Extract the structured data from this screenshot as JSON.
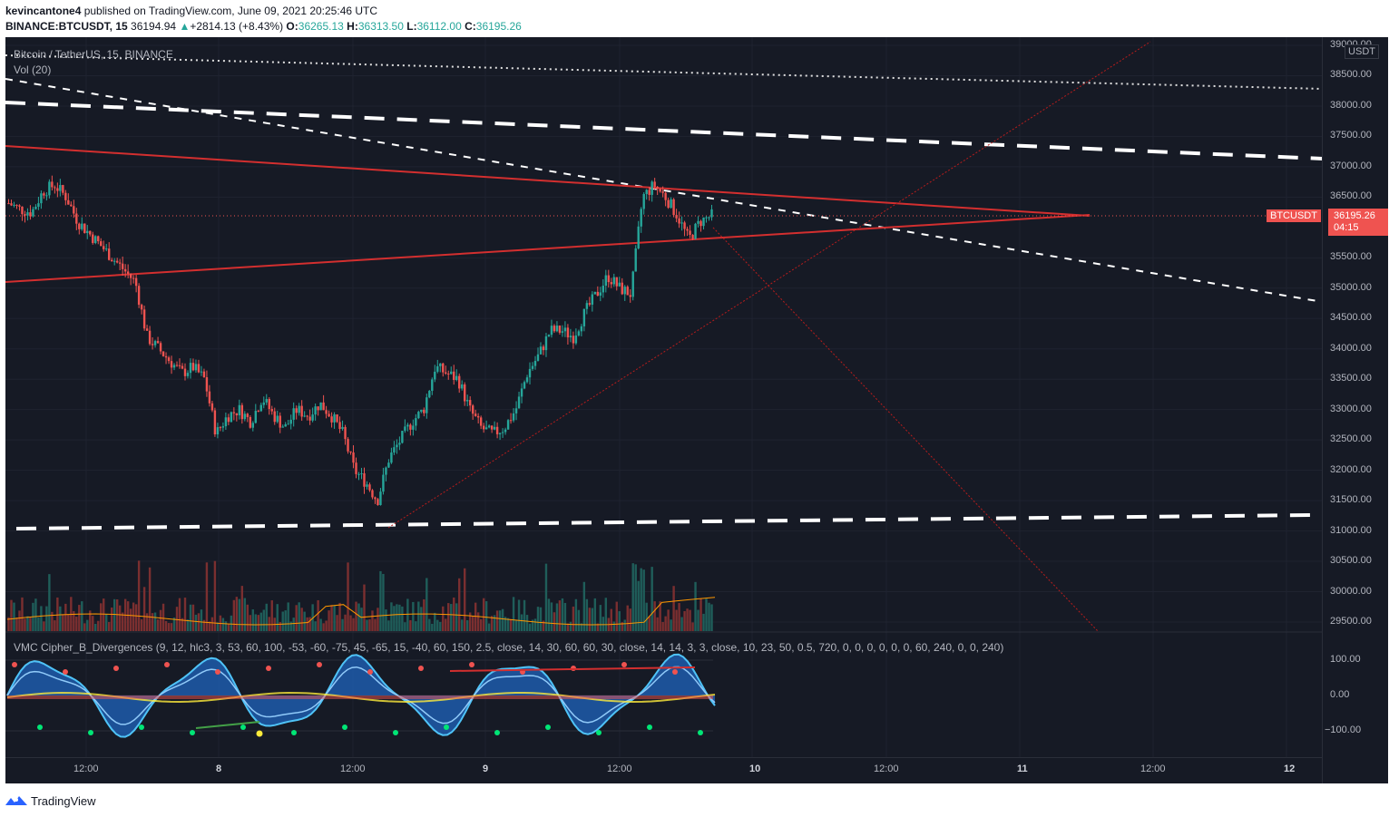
{
  "header": {
    "publisher": "kevincantone4",
    "published_text": " published on TradingView.com, June 09, 2021 20:25:46 UTC",
    "symbol": "BINANCE:BTCUSDT, 15",
    "last": "36194.94",
    "change": "+2814.13 (+8.43%)",
    "o_label": "O:",
    "o_value": "36265.13",
    "h_label": "H:",
    "h_value": "36313.50",
    "l_label": "L:",
    "l_value": "36112.00",
    "c_label": "C:",
    "c_value": "36195.26"
  },
  "chart": {
    "title": "Bitcoin / TetherUS, 15, BINANCE",
    "volume_label": "Vol (20)",
    "unit": "USDT",
    "price_tag": "36195.26",
    "countdown": "04:15",
    "symbol_tag": "BTCUSDT",
    "price_ticks": [
      "39000.00",
      "38500.00",
      "38000.00",
      "37500.00",
      "37000.00",
      "36500.00",
      "35500.00",
      "35000.00",
      "34500.00",
      "34000.00",
      "33500.00",
      "33000.00",
      "32500.00",
      "32000.00",
      "31500.00",
      "31000.00",
      "30500.00",
      "30000.00",
      "29500.00"
    ],
    "time_ticks": [
      "12:00",
      "8",
      "12:00",
      "9",
      "12:00",
      "10",
      "12:00",
      "11",
      "12:00",
      "12"
    ],
    "indicator_label": "VMC Cipher_B_Divergences (9, 12, hlc3, 3, 53, 60, 100, -53, -60, -75, 45, -65, 15, -40, 60, 150, 2.5, close, 14, 30, 60, 60, 30, close, 14, 14, 3, 3, close, 10, 23, 50, 0.5, 720, 0, 0, 0, 0, 0, 0, 60, 240, 0, 0, 240)",
    "indicator_ticks": [
      "100.00",
      "0.00",
      "−100.00"
    ],
    "colors": {
      "background": "#161a25",
      "up": "#26a69a",
      "down": "#ef5350",
      "trendline": "#d32f2f"
    }
  },
  "chart_data": {
    "type": "candlestick",
    "pair": "BTCUSDT",
    "close_path": [
      36400,
      36300,
      36250,
      36600,
      36700,
      36500,
      36100,
      35900,
      35700,
      35500,
      35300,
      35100,
      34200,
      34000,
      33800,
      33600,
      33700,
      33500,
      32600,
      32900,
      33000,
      32800,
      33200,
      32900,
      32700,
      33000,
      32900,
      33100,
      32900,
      32600,
      32000,
      31800,
      31500,
      32200,
      32500,
      32800,
      33000,
      33700,
      33600,
      33500,
      33000,
      32700,
      32600,
      32700,
      33000,
      33600,
      33900,
      34300,
      34300,
      34200,
      34600,
      34900,
      35200,
      35000,
      34900,
      36500,
      36700,
      36500,
      36200,
      35800,
      36100,
      36195
    ]
  },
  "footer": {
    "brand": "TradingView"
  }
}
